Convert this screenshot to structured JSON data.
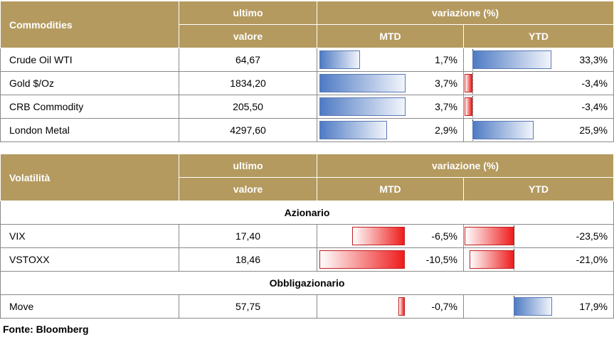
{
  "commodities": {
    "header": {
      "name": "Commodities",
      "last_top": "ultimo",
      "last_bottom": "valore",
      "change": "variazione (%)",
      "mtd": "MTD",
      "ytd": "YTD"
    },
    "rows": [
      {
        "name": "Crude Oil WTI",
        "value": "64,67",
        "mtd": "1,7%",
        "ytd": "33,3%",
        "mtd_num": 1.7,
        "ytd_num": 33.3
      },
      {
        "name": "Gold $/Oz",
        "value": "1834,20",
        "mtd": "3,7%",
        "ytd": "-3,4%",
        "mtd_num": 3.7,
        "ytd_num": -3.4
      },
      {
        "name": "CRB Commodity",
        "value": "205,50",
        "mtd": "3,7%",
        "ytd": "-3,4%",
        "mtd_num": 3.7,
        "ytd_num": -3.4
      },
      {
        "name": "London Metal",
        "value": "4297,60",
        "mtd": "2,9%",
        "ytd": "25,9%",
        "mtd_num": 2.9,
        "ytd_num": 25.9
      }
    ]
  },
  "volatility": {
    "header": {
      "name": "Volatilità",
      "last_top": "ultimo",
      "last_bottom": "valore",
      "change": "variazione (%)",
      "mtd": "MTD",
      "ytd": "YTD"
    },
    "section_equity": "Azionario",
    "section_bond": "Obbligazionario",
    "rows": [
      {
        "name": "VIX",
        "value": "17,40",
        "mtd": "-6,5%",
        "ytd": "-23,5%",
        "mtd_num": -6.5,
        "ytd_num": -23.5
      },
      {
        "name": "VSTOXX",
        "value": "18,46",
        "mtd": "-10,5%",
        "ytd": "-21,0%",
        "mtd_num": -10.5,
        "ytd_num": -21.0
      },
      {
        "name": "Move",
        "value": "57,75",
        "mtd": "-0,7%",
        "ytd": "17,9%",
        "mtd_num": -0.7,
        "ytd_num": 17.9
      }
    ]
  },
  "source": "Fonte: Bloomberg",
  "colors": {
    "header_bg": "#b49a5f",
    "positive": "#4f7bc4",
    "negative": "#ee1c1c"
  }
}
